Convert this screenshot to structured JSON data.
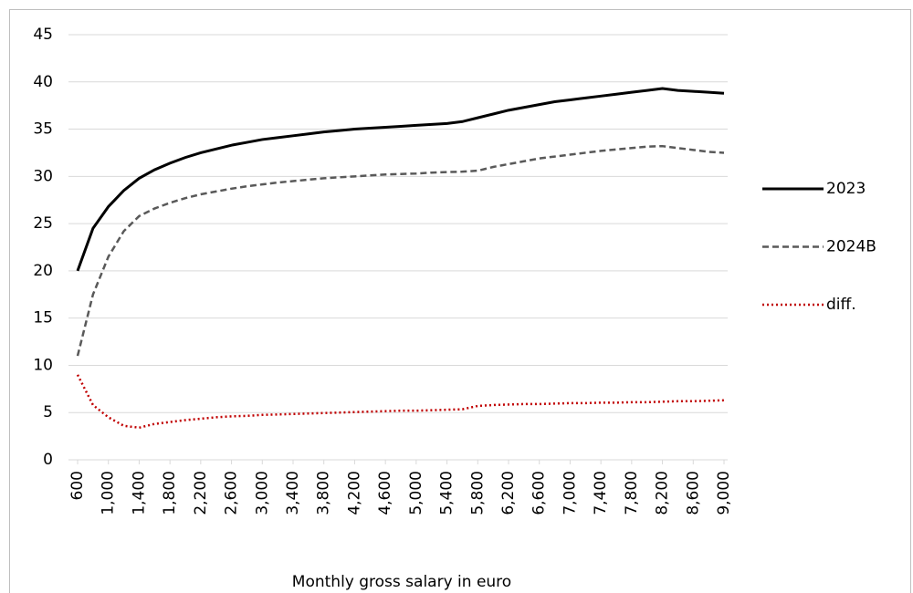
{
  "chart_data": {
    "type": "line",
    "xlabel": "Monthly gross salary in euro",
    "x": [
      600,
      800,
      1000,
      1200,
      1400,
      1600,
      1800,
      2000,
      2200,
      2400,
      2600,
      2800,
      3000,
      3200,
      3400,
      3600,
      3800,
      4000,
      4200,
      4400,
      4600,
      4800,
      5000,
      5200,
      5400,
      5600,
      5800,
      6000,
      6200,
      6400,
      6600,
      6800,
      7000,
      7200,
      7400,
      7600,
      7800,
      8000,
      8200,
      8400,
      8600,
      8800,
      9000
    ],
    "xlim": [
      600,
      9000
    ],
    "xticks": [
      600,
      {
        "value": 1000,
        "label": "1,000"
      },
      {
        "value": 1400,
        "label": "1,400"
      },
      {
        "value": 1800,
        "label": "1,800"
      },
      {
        "value": 2200,
        "label": "2,200"
      },
      {
        "value": 2600,
        "label": "2,600"
      },
      {
        "value": 3000,
        "label": "3,000"
      },
      {
        "value": 3400,
        "label": "3,400"
      },
      {
        "value": 3800,
        "label": "3,800"
      },
      {
        "value": 4200,
        "label": "4,200"
      },
      {
        "value": 4600,
        "label": "4,600"
      },
      {
        "value": 5000,
        "label": "5,000"
      },
      {
        "value": 5400,
        "label": "5,400"
      },
      {
        "value": 5800,
        "label": "5,800"
      },
      {
        "value": 6200,
        "label": "6,200"
      },
      {
        "value": 6600,
        "label": "6,600"
      },
      {
        "value": 7000,
        "label": "7,000"
      },
      {
        "value": 7400,
        "label": "7,400"
      },
      {
        "value": 7800,
        "label": "7,800"
      },
      {
        "value": 8200,
        "label": "8,200"
      },
      {
        "value": 8600,
        "label": "8,600"
      },
      {
        "value": 9000,
        "label": "9,000"
      }
    ],
    "ylim": [
      0,
      45
    ],
    "yticks": [
      0,
      5,
      10,
      15,
      20,
      25,
      30,
      35,
      40,
      45
    ],
    "grid": true,
    "legend": "right",
    "series": [
      {
        "name": "2023",
        "color": "#000000",
        "dash": "solid",
        "values": [
          20,
          24.5,
          26.8,
          28.5,
          29.8,
          30.7,
          31.4,
          32.0,
          32.5,
          32.9,
          33.3,
          33.6,
          33.9,
          34.1,
          34.3,
          34.5,
          34.7,
          34.85,
          35.0,
          35.1,
          35.2,
          35.3,
          35.4,
          35.5,
          35.6,
          35.8,
          36.2,
          36.6,
          37.0,
          37.3,
          37.6,
          37.9,
          38.1,
          38.3,
          38.5,
          38.7,
          38.9,
          39.1,
          39.3,
          39.1,
          39.0,
          38.9,
          38.8
        ]
      },
      {
        "name": "2024B",
        "color": "#595959",
        "dash": "dashed",
        "values": [
          11,
          17.5,
          21.5,
          24.2,
          25.8,
          26.6,
          27.2,
          27.7,
          28.1,
          28.4,
          28.7,
          28.95,
          29.15,
          29.35,
          29.5,
          29.65,
          29.8,
          29.9,
          30.0,
          30.1,
          30.2,
          30.25,
          30.3,
          30.4,
          30.45,
          30.5,
          30.6,
          31.0,
          31.3,
          31.6,
          31.9,
          32.1,
          32.3,
          32.5,
          32.7,
          32.85,
          33.0,
          33.15,
          33.2,
          33.0,
          32.8,
          32.6,
          32.5
        ]
      },
      {
        "name": "diff.",
        "color": "#c00000",
        "dash": "dotted",
        "values": [
          9,
          5.8,
          4.5,
          3.6,
          3.4,
          3.8,
          4.0,
          4.2,
          4.35,
          4.5,
          4.6,
          4.65,
          4.75,
          4.8,
          4.85,
          4.9,
          4.95,
          5.0,
          5.05,
          5.1,
          5.15,
          5.2,
          5.2,
          5.25,
          5.3,
          5.35,
          5.7,
          5.8,
          5.85,
          5.9,
          5.9,
          5.95,
          6.0,
          6.0,
          6.05,
          6.05,
          6.1,
          6.1,
          6.15,
          6.2,
          6.2,
          6.25,
          6.3
        ]
      }
    ]
  }
}
